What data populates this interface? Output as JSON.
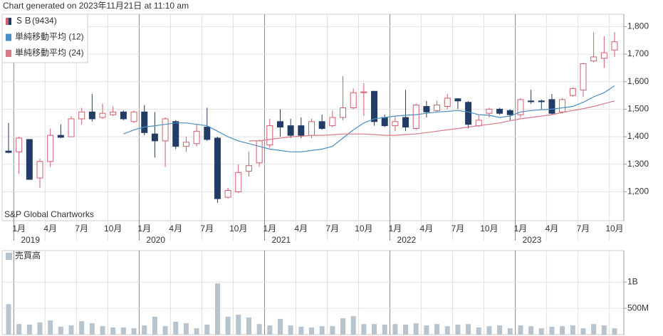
{
  "chart_data": [
    {
      "type": "candlestick",
      "title": "Chart generated on 2023年11月21日 at 11:10 am",
      "annotation": "S&P Global Chartworks",
      "categories": [
        null,
        "1月",
        null,
        null,
        "4月",
        null,
        null,
        "7月",
        null,
        null,
        "10月",
        null,
        null,
        "1月",
        null,
        null,
        "4月",
        null,
        null,
        "7月",
        null,
        null,
        "10月",
        null,
        null,
        "1月",
        null,
        null,
        "4月",
        null,
        null,
        "7月",
        null,
        null,
        "10月",
        null,
        null,
        "1月",
        null,
        null,
        "4月",
        null,
        null,
        "7月",
        null,
        null,
        "10月",
        null,
        null,
        "1月",
        null,
        null,
        "4月",
        null,
        null,
        "7月",
        null,
        null,
        "10月"
      ],
      "years": [
        null,
        "2019",
        null,
        null,
        null,
        null,
        null,
        null,
        null,
        null,
        null,
        null,
        null,
        "2020",
        null,
        null,
        null,
        null,
        null,
        null,
        null,
        null,
        null,
        null,
        null,
        "2021",
        null,
        null,
        null,
        null,
        null,
        null,
        null,
        null,
        null,
        null,
        null,
        "2022",
        null,
        null,
        null,
        null,
        null,
        null,
        null,
        null,
        null,
        null,
        null,
        "2023",
        null,
        null,
        null,
        null,
        null,
        null,
        null,
        null,
        null
      ],
      "ylim": [
        1095,
        1845
      ],
      "yticks": [
        {
          "value": 1200,
          "label": "1,200"
        },
        {
          "value": 1300,
          "label": "1,300"
        },
        {
          "value": 1400,
          "label": "1,400"
        },
        {
          "value": 1500,
          "label": "1,500"
        },
        {
          "value": 1600,
          "label": "1,600"
        },
        {
          "value": 1700,
          "label": "1,700"
        },
        {
          "value": 1800,
          "label": "1,800"
        }
      ],
      "grid": true,
      "legend": "top-left",
      "series": [
        {
          "name": "ＳＢ(9434)",
          "up_color": "#cf5f6c",
          "down_color": "#233c66",
          "open": [
            1348,
            1345,
            1390,
            1250,
            1310,
            1405,
            1400,
            1465,
            1490,
            1470,
            1480,
            1490,
            1455,
            1490,
            1410,
            1385,
            1455,
            1365,
            1375,
            1435,
            1395,
            1180,
            1200,
            1275,
            1305,
            1370,
            1455,
            1440,
            1440,
            1405,
            1455,
            1440,
            1470,
            1505,
            1560,
            1565,
            1470,
            1440,
            1470,
            1430,
            1510,
            1495,
            1510,
            1538,
            1525,
            1440,
            1485,
            1500,
            1495,
            1480,
            1530,
            1530,
            1535,
            1490,
            1550,
            1570,
            1675,
            1685,
            1715
          ],
          "high": [
            1450,
            1400,
            1390,
            1320,
            1430,
            1445,
            1475,
            1505,
            1555,
            1520,
            1510,
            1495,
            1495,
            1515,
            1490,
            1470,
            1460,
            1400,
            1445,
            1505,
            1400,
            1215,
            1300,
            1345,
            1390,
            1465,
            1500,
            1465,
            1470,
            1465,
            1480,
            1495,
            1620,
            1575,
            1595,
            1565,
            1480,
            1475,
            1570,
            1520,
            1530,
            1530,
            1555,
            1540,
            1530,
            1480,
            1505,
            1505,
            1500,
            1540,
            1570,
            1535,
            1555,
            1540,
            1580,
            1670,
            1780,
            1765,
            1780
          ],
          "low": [
            1340,
            1265,
            1245,
            1215,
            1290,
            1395,
            1400,
            1445,
            1455,
            1465,
            1475,
            1460,
            1450,
            1405,
            1325,
            1290,
            1355,
            1345,
            1365,
            1385,
            1160,
            1175,
            1195,
            1255,
            1290,
            1360,
            1400,
            1395,
            1395,
            1395,
            1425,
            1435,
            1460,
            1500,
            1475,
            1440,
            1435,
            1420,
            1420,
            1425,
            1470,
            1490,
            1500,
            1500,
            1430,
            1435,
            1470,
            1480,
            1460,
            1470,
            1520,
            1500,
            1480,
            1485,
            1545,
            1545,
            1670,
            1650,
            1690
          ],
          "close": [
            1343,
            1395,
            1245,
            1310,
            1405,
            1398,
            1465,
            1490,
            1465,
            1485,
            1490,
            1465,
            1490,
            1415,
            1385,
            1465,
            1365,
            1380,
            1420,
            1390,
            1175,
            1205,
            1270,
            1295,
            1385,
            1440,
            1435,
            1405,
            1405,
            1455,
            1430,
            1470,
            1505,
            1560,
            1563,
            1455,
            1440,
            1455,
            1435,
            1515,
            1490,
            1515,
            1540,
            1530,
            1445,
            1460,
            1500,
            1485,
            1480,
            1535,
            1527,
            1527,
            1485,
            1535,
            1575,
            1665,
            1690,
            1705,
            1745
          ]
        },
        {
          "name": "単純移動平均 (12)",
          "color": "#4a8fc4",
          "values": [
            null,
            null,
            null,
            null,
            null,
            null,
            null,
            null,
            null,
            null,
            null,
            1410,
            1425,
            1435,
            1440,
            1445,
            1450,
            1450,
            1445,
            1440,
            1420,
            1400,
            1385,
            1375,
            1365,
            1355,
            1350,
            1345,
            1345,
            1350,
            1355,
            1365,
            1395,
            1425,
            1450,
            1465,
            1470,
            1475,
            1478,
            1480,
            1485,
            1490,
            1492,
            1495,
            1490,
            1480,
            1478,
            1470,
            1475,
            1490,
            1495,
            1498,
            1500,
            1505,
            1510,
            1525,
            1545,
            1560,
            1585
          ]
        },
        {
          "name": "単純移動平均 (24)",
          "color": "#d77a87",
          "values": [
            null,
            null,
            null,
            null,
            null,
            null,
            null,
            null,
            null,
            null,
            null,
            null,
            null,
            null,
            null,
            null,
            null,
            null,
            null,
            null,
            null,
            null,
            null,
            1385,
            1385,
            1390,
            1395,
            1400,
            1402,
            1405,
            1405,
            1407,
            1410,
            1410,
            1410,
            1408,
            1405,
            1405,
            1408,
            1410,
            1415,
            1420,
            1425,
            1430,
            1435,
            1440,
            1445,
            1450,
            1458,
            1465,
            1470,
            1475,
            1480,
            1488,
            1495,
            1502,
            1510,
            1520,
            1530
          ]
        }
      ]
    },
    {
      "type": "bar",
      "ylim": [
        0,
        1600000000
      ],
      "yticks": [
        {
          "value": 500000000,
          "label": "500M"
        },
        {
          "value": 1000000000,
          "label": "1B"
        }
      ],
      "grid": true,
      "series": [
        {
          "name": "売買高",
          "color": "#b8c4cd",
          "values": [
            580000000,
            200000000,
            190000000,
            230000000,
            270000000,
            150000000,
            175000000,
            255000000,
            215000000,
            160000000,
            135000000,
            135000000,
            120000000,
            175000000,
            340000000,
            160000000,
            245000000,
            215000000,
            120000000,
            190000000,
            975000000,
            340000000,
            380000000,
            325000000,
            200000000,
            175000000,
            300000000,
            175000000,
            150000000,
            135000000,
            160000000,
            160000000,
            310000000,
            350000000,
            200000000,
            200000000,
            190000000,
            200000000,
            190000000,
            215000000,
            175000000,
            200000000,
            160000000,
            190000000,
            200000000,
            135000000,
            160000000,
            175000000,
            120000000,
            175000000,
            160000000,
            120000000,
            150000000,
            160000000,
            175000000,
            120000000,
            200000000,
            175000000,
            120000000
          ]
        }
      ]
    }
  ]
}
